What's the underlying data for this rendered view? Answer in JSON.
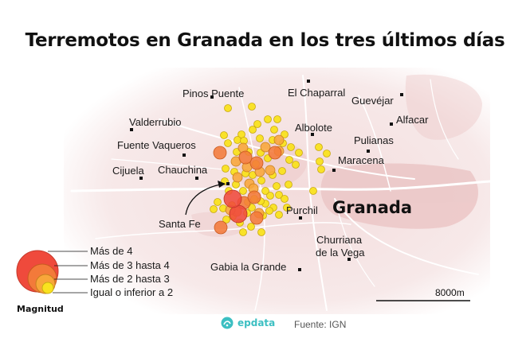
{
  "title": "Terremotos en Granada en los tres últimos días",
  "cities": {
    "pinos_puente": "Pinos Puente",
    "el_chaparral": "El Chaparral",
    "guevejar": "Guevéjar",
    "valderrubio": "Valderrubio",
    "alfacar": "Alfacar",
    "albolote": "Albolote",
    "pulianas": "Pulianas",
    "fuente_vaqueros": "Fuente Vaqueros",
    "maracena": "Maracena",
    "cijuela": "Cijuela",
    "chauchina": "Chauchina",
    "granada": "Granada",
    "purchil": "Purchil",
    "santa_fe": "Santa Fe",
    "churriana_line1": "Churriana",
    "churriana_line2": "de la Vega",
    "gabia": "Gabia la Grande"
  },
  "legend": {
    "title": "Magnitud",
    "items": [
      {
        "label": "Más de 4",
        "color": "#ef4a3c"
      },
      {
        "label": "Más de 3 hasta 4",
        "color": "#f37a3a"
      },
      {
        "label": "Más de 2 hasta 3",
        "color": "#f8a63a"
      },
      {
        "label": "Igual o inferior a 2",
        "color": "#f9e21f"
      }
    ]
  },
  "scale": {
    "label": "8000m"
  },
  "footer": {
    "brand": "epdata",
    "source": "Fuente: IGN"
  },
  "colors": {
    "map_background": "#f6e6e6",
    "roads": "#ffffff",
    "urban": "#ecc8c8",
    "quake_over_4": "#ef4a3c",
    "quake_3_to_4": "#f37a3a",
    "quake_2_to_3": "#f8a63a",
    "quake_under_2": "#f9e21f",
    "brand": "#3cbfc2"
  }
}
